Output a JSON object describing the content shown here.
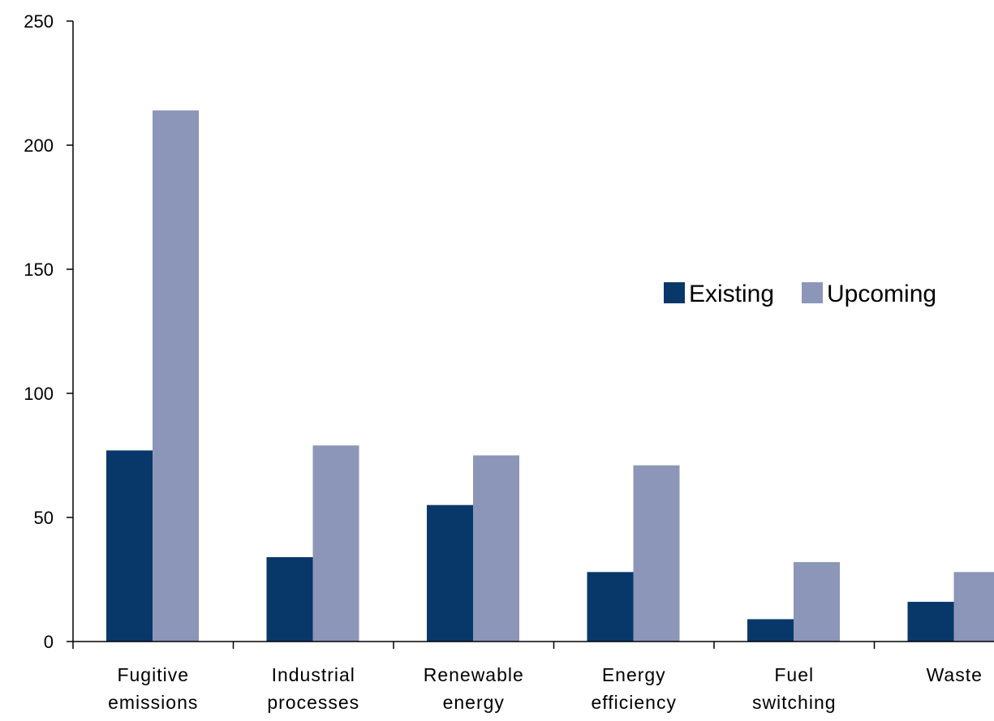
{
  "chart_data": {
    "type": "bar",
    "categories": [
      [
        "Fugitive",
        "emissions"
      ],
      [
        "Industrial",
        "processes"
      ],
      [
        "Renewable",
        "energy"
      ],
      [
        "Energy",
        "efficiency"
      ],
      [
        "Fuel",
        "switching"
      ],
      [
        "Waste"
      ]
    ],
    "series": [
      {
        "name": "Existing",
        "color": "#08386a",
        "values": [
          77,
          34,
          55,
          28,
          9,
          16
        ]
      },
      {
        "name": "Upcoming",
        "color": "#8c96b9",
        "values": [
          214,
          79,
          75,
          71,
          32,
          28
        ]
      }
    ],
    "title": "",
    "xlabel": "",
    "ylabel": "",
    "ylim": [
      0,
      250
    ],
    "yticks": [
      0,
      50,
      100,
      150,
      200,
      250
    ],
    "grid": false,
    "legend": "right"
  }
}
